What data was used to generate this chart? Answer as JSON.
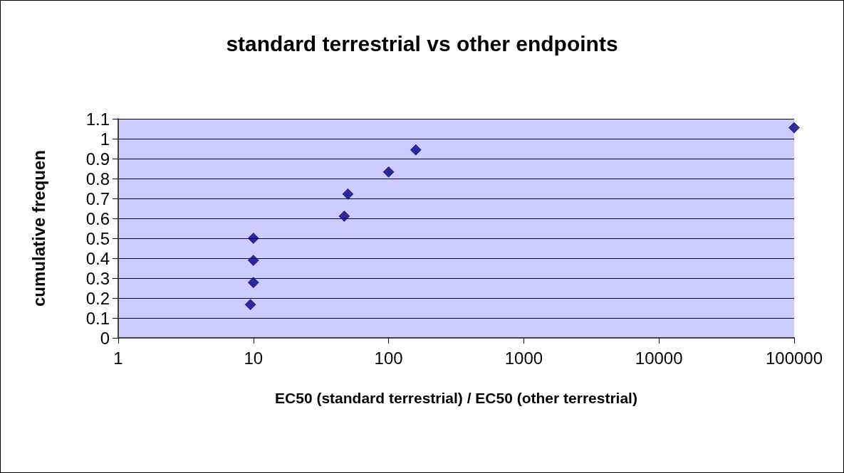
{
  "chart_data": {
    "type": "scatter",
    "title": "standard terrestrial vs other endpoints",
    "xlabel": "EC50 (standard terrestrial) / EC50 (other terrestrial)",
    "ylabel": "cumulative frequen",
    "x": [
      9.5,
      10,
      10,
      10,
      47,
      50,
      100,
      159,
      100000
    ],
    "series": [
      {
        "color": "#000080",
        "values": [
          0.167,
          0.278,
          0.389,
          0.5,
          0.611,
          0.722,
          0.833,
          0.944,
          1.055
        ]
      }
    ],
    "log": "x",
    "xlim": [
      1,
      100000
    ],
    "xticks": [
      1,
      10,
      100,
      1000,
      10000,
      100000
    ],
    "ylim": [
      0,
      1.1
    ],
    "yticks": [
      0,
      0.1,
      0.2,
      0.3,
      0.4,
      0.5,
      0.6,
      0.7,
      0.8,
      0.9,
      1,
      1.1
    ],
    "grid": "y",
    "marker": "diamond"
  }
}
